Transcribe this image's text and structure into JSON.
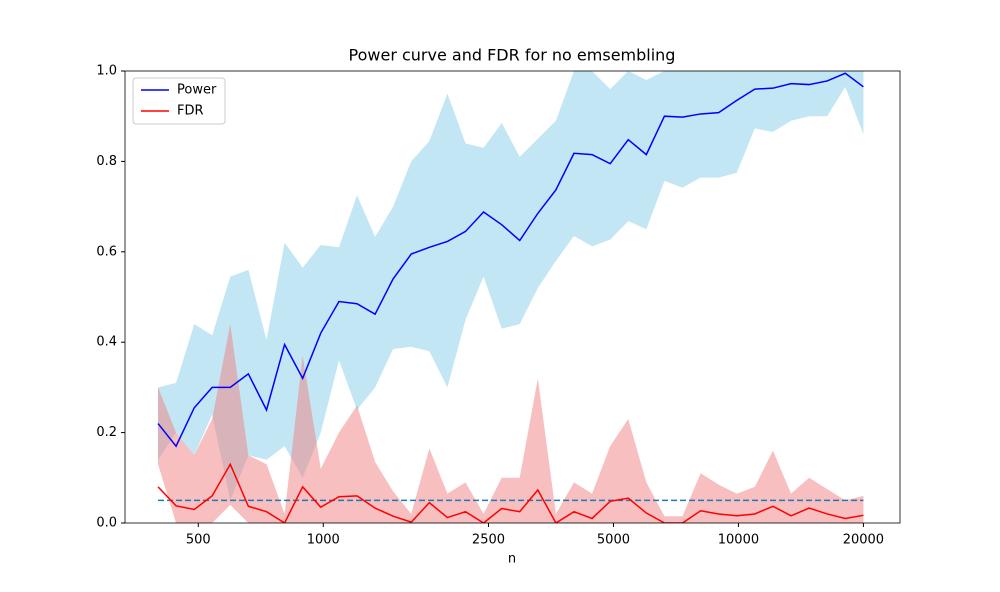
{
  "chart_data": {
    "type": "line",
    "title": "Power curve and FDR for no emsembling",
    "xlabel": "n",
    "x": [
      400,
      442,
      489,
      540,
      597,
      660,
      730,
      807,
      892,
      986,
      1091,
      1206,
      1333,
      1473,
      1629,
      1801,
      1991,
      2201,
      2433,
      2690,
      2973,
      3287,
      3634,
      4017,
      4441,
      4910,
      5428,
      6000,
      6634,
      7333,
      8107,
      8962,
      9908,
      10953,
      12109,
      13386,
      14798,
      16360,
      18086,
      20000
    ],
    "series": [
      {
        "name": "Power",
        "color": "#0000ff",
        "band_color": "#87ceeb",
        "values": [
          0.22,
          0.17,
          0.255,
          0.3,
          0.3,
          0.33,
          0.25,
          0.395,
          0.32,
          0.42,
          0.49,
          0.485,
          0.462,
          0.54,
          0.595,
          0.61,
          0.623,
          0.645,
          0.688,
          0.66,
          0.625,
          0.685,
          0.737,
          0.818,
          0.815,
          0.795,
          0.848,
          0.815,
          0.9,
          0.898,
          0.905,
          0.908,
          0.935,
          0.96,
          0.962,
          0.972,
          0.97,
          0.978,
          0.995,
          0.965
        ],
        "lower": [
          0.14,
          0.2,
          0.15,
          0.24,
          0.05,
          0.15,
          0.14,
          0.17,
          0.1,
          0.2,
          0.36,
          0.25,
          0.3,
          0.385,
          0.39,
          0.38,
          0.3,
          0.45,
          0.545,
          0.43,
          0.44,
          0.52,
          0.58,
          0.635,
          0.612,
          0.627,
          0.668,
          0.65,
          0.757,
          0.742,
          0.764,
          0.764,
          0.775,
          0.873,
          0.865,
          0.89,
          0.9,
          0.9,
          0.965,
          0.86
        ],
        "upper": [
          0.3,
          0.31,
          0.44,
          0.415,
          0.545,
          0.56,
          0.405,
          0.62,
          0.565,
          0.615,
          0.61,
          0.725,
          0.633,
          0.7,
          0.8,
          0.845,
          0.95,
          0.84,
          0.83,
          0.885,
          0.81,
          0.85,
          0.89,
          1.0,
          1.0,
          0.96,
          1.0,
          0.98,
          1.0,
          1.0,
          1.0,
          1.0,
          1.0,
          1.0,
          1.0,
          1.0,
          1.0,
          1.0,
          1.0,
          1.0
        ]
      },
      {
        "name": "FDR",
        "color": "#ff0000",
        "band_color": "#f08080",
        "values": [
          0.08,
          0.038,
          0.03,
          0.06,
          0.13,
          0.037,
          0.025,
          0.0,
          0.08,
          0.035,
          0.058,
          0.06,
          0.033,
          0.015,
          0.002,
          0.045,
          0.012,
          0.025,
          0.0,
          0.032,
          0.025,
          0.073,
          0.0,
          0.025,
          0.01,
          0.048,
          0.055,
          0.022,
          0.0,
          0.0,
          0.027,
          0.02,
          0.016,
          0.02,
          0.037,
          0.016,
          0.033,
          0.02,
          0.01,
          0.017
        ],
        "lower": [
          0.13,
          0.0,
          0.0,
          0.0,
          0.04,
          0.0,
          0.0,
          0.0,
          0.0,
          0.0,
          0.0,
          0.0,
          0.0,
          0.0,
          0.0,
          0.0,
          0.0,
          0.0,
          0.0,
          0.0,
          0.0,
          0.0,
          0.0,
          0.0,
          0.0,
          0.0,
          0.0,
          0.0,
          0.0,
          0.0,
          0.0,
          0.0,
          0.0,
          0.0,
          0.0,
          0.0,
          0.0,
          0.0,
          0.0,
          0.0
        ],
        "upper": [
          0.3,
          0.2,
          0.15,
          0.23,
          0.44,
          0.15,
          0.13,
          0.02,
          0.37,
          0.12,
          0.2,
          0.26,
          0.135,
          0.07,
          0.02,
          0.165,
          0.065,
          0.09,
          0.02,
          0.1,
          0.1,
          0.32,
          0.02,
          0.09,
          0.065,
          0.17,
          0.23,
          0.09,
          0.015,
          0.015,
          0.11,
          0.085,
          0.065,
          0.08,
          0.16,
          0.065,
          0.1,
          0.075,
          0.05,
          0.06
        ]
      }
    ],
    "hline": {
      "y": 0.05,
      "color": "#1f77b4",
      "dashed": true
    },
    "xscale": "log",
    "xlim": [
      333,
      24500
    ],
    "xticks": [
      500,
      1000,
      2500,
      5000,
      10000,
      20000
    ],
    "ylim": [
      0,
      1
    ],
    "yticks": [
      {
        "value": 0,
        "label": "0.0"
      },
      {
        "value": 0.2,
        "label": "0.2"
      },
      {
        "value": 0.4,
        "label": "0.4"
      },
      {
        "value": 0.6,
        "label": "0.6"
      },
      {
        "value": 0.8,
        "label": "0.8"
      },
      {
        "value": 1,
        "label": "1.0"
      }
    ],
    "legend": "upper left"
  }
}
